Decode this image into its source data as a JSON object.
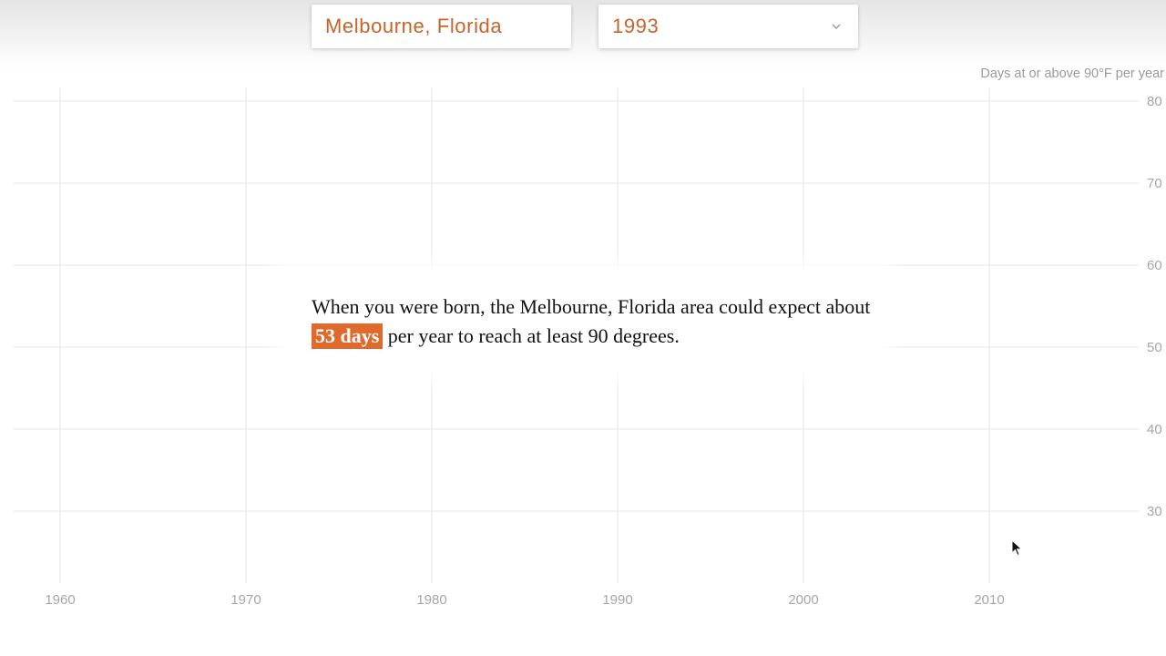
{
  "controls": {
    "location_value": "Melbourne, Florida",
    "year_value": "1993"
  },
  "narrative": {
    "before": "When you were born, the Melbourne, Florida area could expect about ",
    "highlight": "53 days",
    "after": " per year to reach at least 90 degrees."
  },
  "colors": {
    "accent": "#e0692b",
    "control_text": "#c5642b",
    "grid": "#e6e6e6",
    "tick_text": "#a6a6a6"
  },
  "icons": {
    "year_dropdown": "chevron-down-icon",
    "pointer": "mouse-cursor-icon"
  },
  "chart_data": {
    "type": "line",
    "title": "",
    "ylabel": "Days at or above 90°F per year",
    "xlabel": "",
    "x_ticks": [
      1960,
      1970,
      1980,
      1990,
      2000,
      2010
    ],
    "y_ticks": [
      30,
      40,
      50,
      60,
      70,
      80
    ],
    "xlim": [
      1957.5,
      2018
    ],
    "ylim": [
      22,
      81
    ],
    "grid": true,
    "y_axis_side": "right",
    "series": []
  }
}
